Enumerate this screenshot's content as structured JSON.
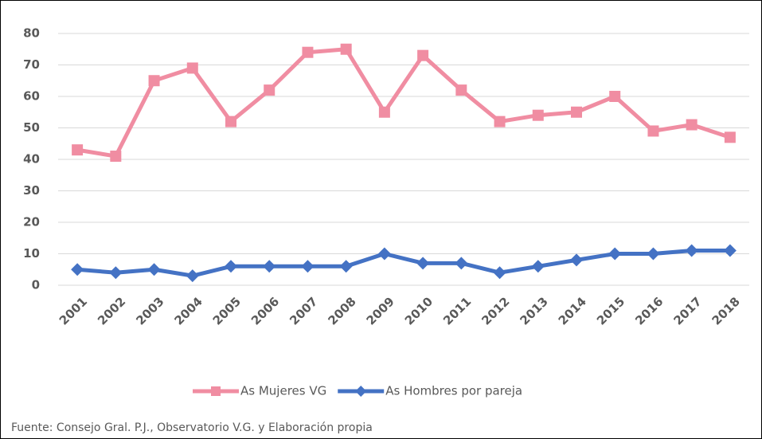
{
  "chart_data": {
    "type": "line",
    "categories": [
      "2001",
      "2002",
      "2003",
      "2004",
      "2005",
      "2006",
      "2007",
      "2008",
      "2009",
      "2010",
      "2011",
      "2012",
      "2013",
      "2014",
      "2015",
      "2016",
      "2017",
      "2018"
    ],
    "series": [
      {
        "name": "As Mujeres VG",
        "color": "#f08da2",
        "marker": "square",
        "values": [
          43,
          41,
          65,
          69,
          52,
          62,
          74,
          75,
          55,
          73,
          62,
          52,
          54,
          55,
          60,
          49,
          51,
          47
        ]
      },
      {
        "name": "As Hombres por pareja",
        "color": "#4472c4",
        "marker": "diamond",
        "values": [
          5,
          4,
          5,
          3,
          6,
          6,
          6,
          6,
          10,
          7,
          7,
          4,
          6,
          8,
          10,
          10,
          11,
          11
        ]
      }
    ],
    "ylim": [
      0,
      80
    ],
    "yticks": [
      0,
      10,
      20,
      30,
      40,
      50,
      60,
      70,
      80
    ],
    "grid": true,
    "legend": "bottom",
    "source": "Fuente:  Consejo Gral. P.J., Observatorio V.G. y Elaboración propia"
  }
}
